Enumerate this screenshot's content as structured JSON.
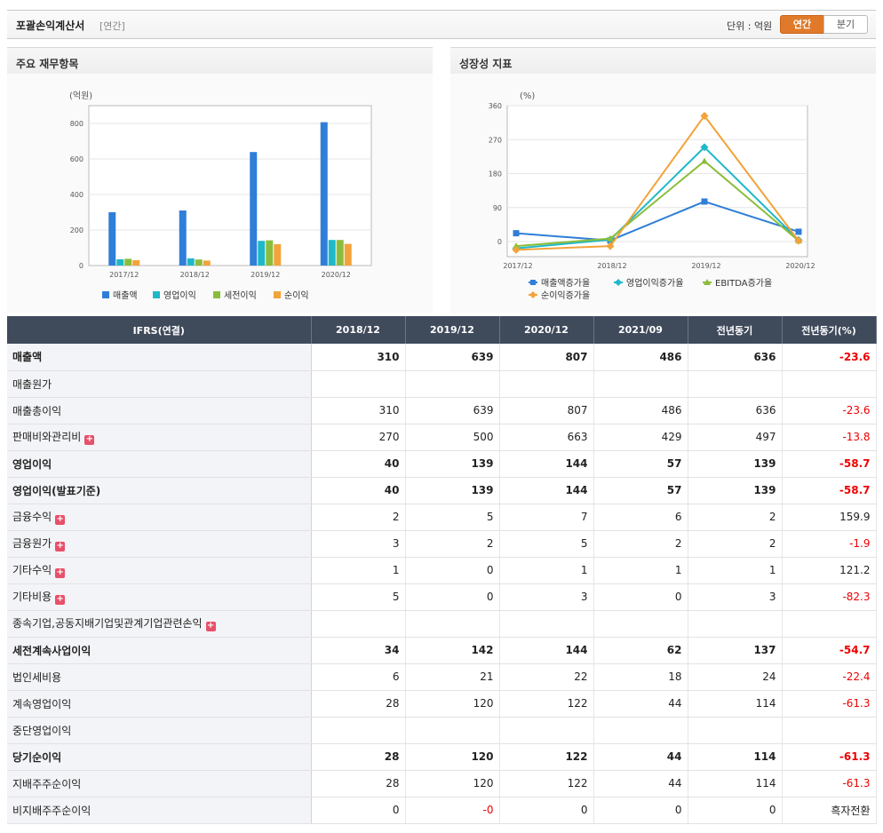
{
  "header": {
    "title": "포괄손익계산서",
    "subtitle": "[연간]",
    "unit": "단위 : 억원",
    "tab_annual": "연간",
    "tab_quarter": "분기"
  },
  "panels": {
    "left_title": "주요 재무항목",
    "right_title": "성장성 지표"
  },
  "chart_data": [
    {
      "type": "bar",
      "ylabel": "(억원)",
      "categories": [
        "2017/12",
        "2018/12",
        "2019/12",
        "2020/12"
      ],
      "ylim": [
        0,
        900
      ],
      "yticks": [
        0,
        200,
        400,
        600,
        800
      ],
      "legend_position": "bottom",
      "series": [
        {
          "name": "매출액",
          "color": "#2f7ed8",
          "values": [
            300,
            310,
            639,
            807
          ]
        },
        {
          "name": "영업이익",
          "color": "#1fb8c9",
          "values": [
            35,
            40,
            139,
            144
          ]
        },
        {
          "name": "세전이익",
          "color": "#8bbd3c",
          "values": [
            38,
            34,
            142,
            144
          ]
        },
        {
          "name": "순이익",
          "color": "#f2a33a",
          "values": [
            30,
            28,
            120,
            122
          ]
        }
      ]
    },
    {
      "type": "line",
      "ylabel": "(%)",
      "categories": [
        "2017/12",
        "2018/12",
        "2019/12",
        "2020/12"
      ],
      "ylim": [
        -40,
        360
      ],
      "yticks": [
        0,
        90,
        180,
        270,
        360
      ],
      "legend_position": "bottom",
      "series": [
        {
          "name": "매출액증가율",
          "color": "#2f7ed8",
          "marker": "square",
          "values": [
            22,
            3,
            106,
            26
          ]
        },
        {
          "name": "영업이익증가율",
          "color": "#1fb8c9",
          "marker": "diamond",
          "values": [
            -18,
            5,
            250,
            4
          ]
        },
        {
          "name": "EBITDA증가율",
          "color": "#8bbd3c",
          "marker": "triangle",
          "values": [
            -12,
            8,
            213,
            2
          ]
        },
        {
          "name": "순이익증가율",
          "color": "#f2a33a",
          "marker": "diamond",
          "values": [
            -22,
            -12,
            333,
            2
          ]
        }
      ]
    }
  ],
  "table": {
    "headers": [
      "IFRS(연결)",
      "2018/12",
      "2019/12",
      "2020/12",
      "2021/09",
      "전년동기",
      "전년동기(%)"
    ],
    "rows": [
      {
        "label": "매출액",
        "values": [
          "310",
          "639",
          "807",
          "486",
          "636",
          "-23.6"
        ],
        "bold": true,
        "plus": false,
        "indent": false
      },
      {
        "label": "매출원가",
        "values": [
          "",
          "",
          "",
          "",
          "",
          ""
        ],
        "bold": false,
        "plus": false,
        "indent": false
      },
      {
        "label": "매출총이익",
        "values": [
          "310",
          "639",
          "807",
          "486",
          "636",
          "-23.6"
        ],
        "bold": false,
        "plus": false,
        "indent": false
      },
      {
        "label": "판매비와관리비",
        "values": [
          "270",
          "500",
          "663",
          "429",
          "497",
          "-13.8"
        ],
        "bold": false,
        "plus": true,
        "indent": false
      },
      {
        "label": "영업이익",
        "values": [
          "40",
          "139",
          "144",
          "57",
          "139",
          "-58.7"
        ],
        "bold": true,
        "plus": false,
        "indent": false
      },
      {
        "label": "영업이익(발표기준)",
        "values": [
          "40",
          "139",
          "144",
          "57",
          "139",
          "-58.7"
        ],
        "bold": true,
        "plus": false,
        "indent": false
      },
      {
        "label": "금융수익",
        "values": [
          "2",
          "5",
          "7",
          "6",
          "2",
          "159.9"
        ],
        "bold": false,
        "plus": true,
        "indent": false
      },
      {
        "label": "금융원가",
        "values": [
          "3",
          "2",
          "5",
          "2",
          "2",
          "-1.9"
        ],
        "bold": false,
        "plus": true,
        "indent": false
      },
      {
        "label": "기타수익",
        "values": [
          "1",
          "0",
          "1",
          "1",
          "1",
          "121.2"
        ],
        "bold": false,
        "plus": true,
        "indent": false
      },
      {
        "label": "기타비용",
        "values": [
          "5",
          "0",
          "3",
          "0",
          "3",
          "-82.3"
        ],
        "bold": false,
        "plus": true,
        "indent": false
      },
      {
        "label": "종속기업,공동지배기업및관계기업관련손익",
        "values": [
          "",
          "",
          "",
          "",
          "",
          ""
        ],
        "bold": false,
        "plus": true,
        "indent": false
      },
      {
        "label": "세전계속사업이익",
        "values": [
          "34",
          "142",
          "144",
          "62",
          "137",
          "-54.7"
        ],
        "bold": true,
        "plus": false,
        "indent": false
      },
      {
        "label": "법인세비용",
        "values": [
          "6",
          "21",
          "22",
          "18",
          "24",
          "-22.4"
        ],
        "bold": false,
        "plus": false,
        "indent": false
      },
      {
        "label": "계속영업이익",
        "values": [
          "28",
          "120",
          "122",
          "44",
          "114",
          "-61.3"
        ],
        "bold": false,
        "plus": false,
        "indent": false
      },
      {
        "label": "중단영업이익",
        "values": [
          "",
          "",
          "",
          "",
          "",
          ""
        ],
        "bold": false,
        "plus": false,
        "indent": false
      },
      {
        "label": "당기순이익",
        "values": [
          "28",
          "120",
          "122",
          "44",
          "114",
          "-61.3"
        ],
        "bold": true,
        "plus": false,
        "indent": false
      },
      {
        "label": "지배주주순이익",
        "values": [
          "28",
          "120",
          "122",
          "44",
          "114",
          "-61.3"
        ],
        "bold": false,
        "plus": false,
        "indent": true
      },
      {
        "label": "비지배주주순이익",
        "values": [
          "0",
          "-0",
          "0",
          "0",
          "0",
          "흑자전환"
        ],
        "bold": false,
        "plus": false,
        "indent": true
      }
    ]
  }
}
